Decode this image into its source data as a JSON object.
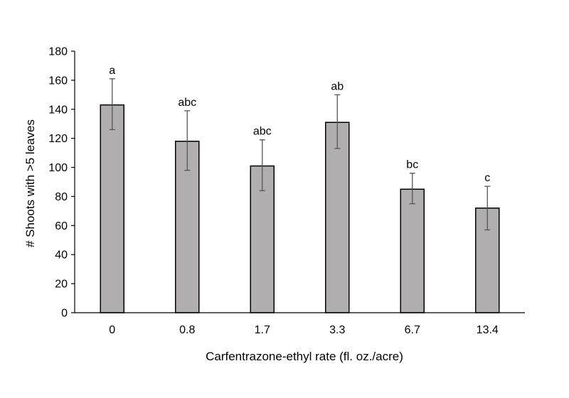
{
  "chart_data": {
    "type": "bar",
    "title": "",
    "xlabel": "Carfentrazone-ethyl rate (fl. oz./acre)",
    "ylabel": "# Shoots with >5 leaves",
    "categories": [
      "0",
      "0.8",
      "1.7",
      "3.3",
      "6.7",
      "13.4"
    ],
    "values": [
      143,
      118,
      101,
      131,
      85,
      72
    ],
    "error_low": [
      126,
      98,
      84,
      113,
      75,
      57
    ],
    "error_high": [
      161,
      139,
      119,
      150,
      96,
      87
    ],
    "significance_labels": [
      "a",
      "abc",
      "abc",
      "ab",
      "bc",
      "c"
    ],
    "ylim": [
      0,
      180
    ],
    "yticks": [
      "0",
      "20",
      "40",
      "60",
      "80",
      "100",
      "120",
      "140",
      "160",
      "180"
    ],
    "grid": false,
    "legend": "none",
    "colors": {
      "bar_fill": "#b0aeae",
      "bar_stroke": "#000000",
      "error_bar": "#555555",
      "axis": "#000000"
    }
  }
}
